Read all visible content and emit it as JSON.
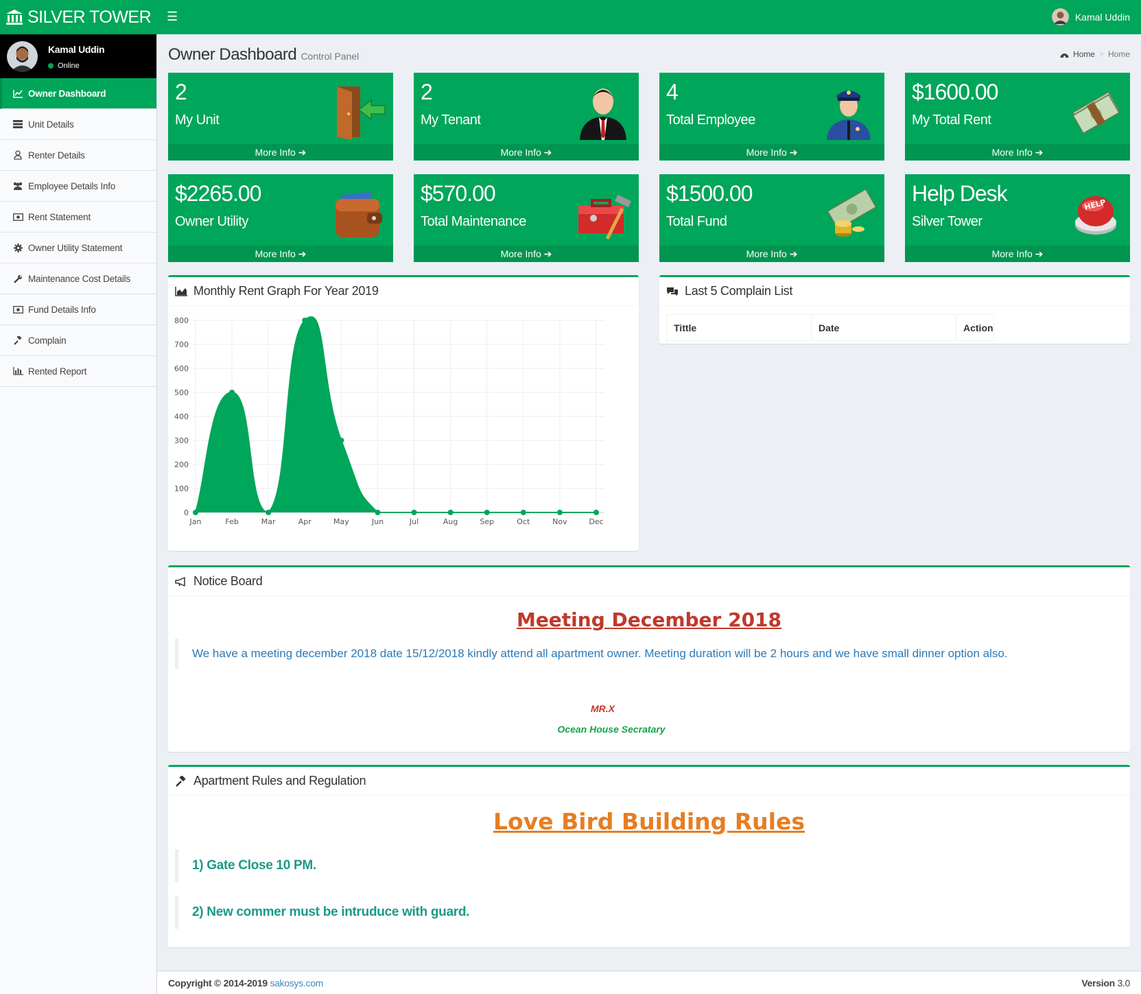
{
  "app": {
    "title": "SILVER TOWER"
  },
  "header": {
    "user_name": "Kamal Uddin"
  },
  "sidebar": {
    "user_name": "Kamal Uddin",
    "status": "Online",
    "items": [
      {
        "label": "Owner Dashboard",
        "icon": "line-chart-icon"
      },
      {
        "label": "Unit Details",
        "icon": "list-icon"
      },
      {
        "label": "Renter Details",
        "icon": "user-icon"
      },
      {
        "label": "Employee Details Info",
        "icon": "users-icon"
      },
      {
        "label": "Rent Statement",
        "icon": "money-icon"
      },
      {
        "label": "Owner Utility Statement",
        "icon": "gear-icon"
      },
      {
        "label": "Maintenance Cost Details",
        "icon": "wrench-icon"
      },
      {
        "label": "Fund Details Info",
        "icon": "money-icon"
      },
      {
        "label": "Complain",
        "icon": "gavel-icon"
      },
      {
        "label": "Rented Report",
        "icon": "bar-chart-icon"
      }
    ]
  },
  "page": {
    "title": "Owner Dashboard",
    "subtitle": "Control Panel"
  },
  "breadcrumb": {
    "home": "Home",
    "current": "Home"
  },
  "tiles": [
    {
      "value": "2",
      "label": "My Unit",
      "more": "More Info",
      "icon": "door-icon"
    },
    {
      "value": "2",
      "label": "My Tenant",
      "more": "More Info",
      "icon": "businessman-icon"
    },
    {
      "value": "4",
      "label": "Total Employee",
      "more": "More Info",
      "icon": "policeman-icon"
    },
    {
      "value": "$1600.00",
      "label": "My Total Rent",
      "more": "More Info",
      "icon": "cash-icon"
    },
    {
      "value": "$2265.00",
      "label": "Owner Utility",
      "more": "More Info",
      "icon": "wallet-icon"
    },
    {
      "value": "$570.00",
      "label": "Total Maintenance",
      "more": "More Info",
      "icon": "toolbox-icon"
    },
    {
      "value": "$1500.00",
      "label": "Total Fund",
      "more": "More Info",
      "icon": "money-coins-icon"
    },
    {
      "value": "Help Desk",
      "label": "Silver Tower",
      "more": "More Info",
      "icon": "help-button-icon"
    }
  ],
  "rent_graph": {
    "title": "Monthly Rent Graph For Year 2019"
  },
  "chart_data": {
    "type": "area",
    "categories": [
      "Jan",
      "Feb",
      "Mar",
      "Apr",
      "May",
      "Jun",
      "Jul",
      "Aug",
      "Sep",
      "Oct",
      "Nov",
      "Dec"
    ],
    "series": [
      {
        "values": [
          0,
          500,
          0,
          800,
          300,
          0,
          0,
          0,
          0,
          0,
          0,
          0
        ]
      }
    ],
    "ylim": [
      0,
      800
    ],
    "yticks": [
      "0",
      "100",
      "200",
      "300",
      "400",
      "500",
      "600",
      "700",
      "800"
    ],
    "grid": true,
    "color": "#00a65a"
  },
  "complains": {
    "title": "Last 5 Complain List",
    "columns": [
      "Tittle",
      "Date",
      "Action"
    ]
  },
  "notice": {
    "header": "Notice Board",
    "title": "Meeting December 2018",
    "text": "We have a meeting december 2018 date 15/12/2018 kindly attend all apartment owner. Meeting duration will be 2 hours and we have small dinner option also.",
    "signature_name": "MR.X",
    "signature_role": "Ocean House Secratary"
  },
  "rules": {
    "header": "Apartment Rules and Regulation",
    "title": "Love Bird Building Rules",
    "items": [
      "1) Gate Close 10 PM.",
      "2) New commer must be intruduce with guard."
    ]
  },
  "footer": {
    "copyright": "Copyright © 2014-2019",
    "link": "sakosys.com",
    "version_label": "Version",
    "version": "3.0"
  },
  "colors": {
    "brand": "#00a65a",
    "brand_dark": "#009551"
  }
}
